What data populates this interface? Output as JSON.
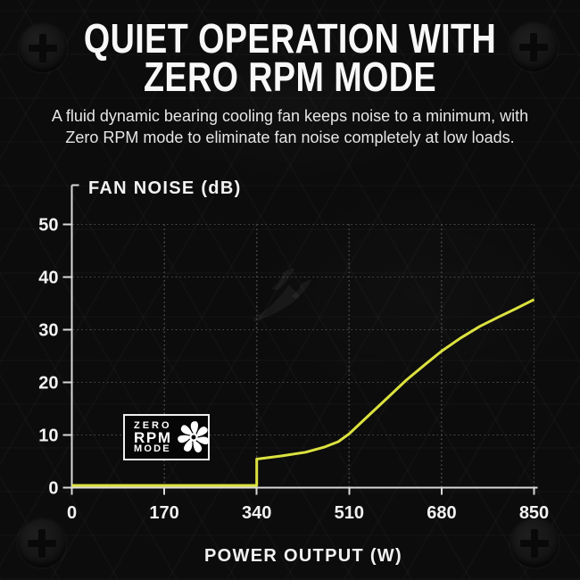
{
  "header": {
    "title_lines": [
      "QUIET OPERATION WITH",
      "ZERO RPM MODE"
    ],
    "subtitle_lines": [
      "A fluid dynamic bearing cooling fan keeps noise to a minimum, with",
      "Zero RPM mode to eliminate fan noise completely at low loads."
    ]
  },
  "badge": {
    "line1": "ZERO",
    "line2": "RPM",
    "line3": "MODE",
    "icon": "fan-blade-icon"
  },
  "decorations": {
    "corner_icon": "phillips-screw-icon",
    "watermark_icon": "corsair-sails-logo"
  },
  "chart_data": {
    "type": "line",
    "title": "",
    "xlabel": "POWER OUTPUT (W)",
    "ylabel": "FAN NOISE (dB)",
    "xlim": [
      0,
      850
    ],
    "ylim": [
      0,
      50
    ],
    "xticks": [
      0,
      170,
      340,
      510,
      680,
      850
    ],
    "yticks": [
      0,
      10,
      20,
      30,
      40,
      50
    ],
    "grid": "dotted",
    "legend": "none",
    "colors": {
      "line": "#dce23f",
      "axis": "#d9d9d9",
      "grid": "#4b4b4b",
      "tick_label": "#f2f2f2",
      "background": "#0c0c0c"
    },
    "series": [
      {
        "name": "Fan noise vs power output",
        "points": [
          [
            0,
            0
          ],
          [
            340,
            0
          ],
          [
            340,
            5
          ],
          [
            385,
            5.6
          ],
          [
            430,
            6.3
          ],
          [
            465,
            7.3
          ],
          [
            490,
            8.3
          ],
          [
            510,
            9.8
          ],
          [
            545,
            13.2
          ],
          [
            580,
            16.6
          ],
          [
            615,
            20
          ],
          [
            650,
            23
          ],
          [
            680,
            25.5
          ],
          [
            715,
            28
          ],
          [
            750,
            30.2
          ],
          [
            785,
            32
          ],
          [
            815,
            33.5
          ],
          [
            850,
            35.3
          ]
        ]
      }
    ],
    "annotations": [
      "ZERO RPM MODE"
    ]
  }
}
